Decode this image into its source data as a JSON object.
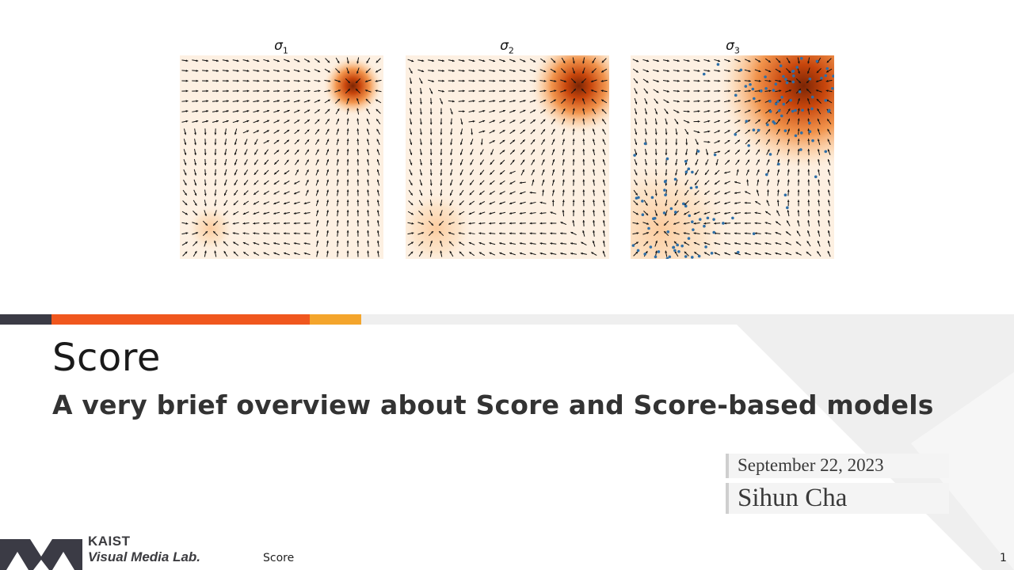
{
  "figure": {
    "panels": [
      {
        "label": "σ",
        "subscript": "1"
      },
      {
        "label": "σ",
        "subscript": "2"
      },
      {
        "label": "σ",
        "subscript": "3"
      }
    ]
  },
  "slide": {
    "title": "Score",
    "subtitle": "A very brief overview about Score and Score-based models",
    "date": "September 22, 2023",
    "author": "Sihun Cha"
  },
  "footer": {
    "logo_line1": "KAIST",
    "logo_line2": "Visual Media Lab.",
    "section": "Score",
    "page": "1"
  },
  "colors": {
    "dark_bar": "#3b3b45",
    "accent_orange": "#f0571e",
    "accent_yellow": "#f4a52c",
    "light_gray": "#efefef",
    "density_peak": "#7a2505",
    "density_base": "#fdf0e2",
    "sample_points": "#2e6fa8"
  }
}
